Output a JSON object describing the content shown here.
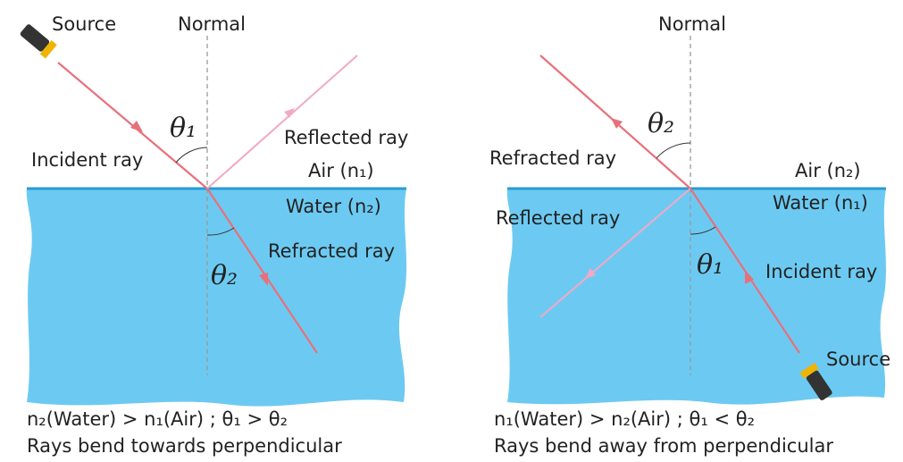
{
  "panels": [
    {
      "source": "Source",
      "normal": "Normal",
      "angle_top": "θ₁",
      "incident": "Incident ray",
      "reflected": "Reflected ray",
      "upper_medium": "Air (n₁)",
      "lower_medium": "Water (n₂)",
      "refracted": "Refracted ray",
      "angle_bottom": "θ₂",
      "caption": [
        "n₂(Water) > n₁(Air) ;  θ₁ > θ₂",
        "Rays bend towards perpendicular"
      ]
    },
    {
      "normal": "Normal",
      "angle_top": "θ₂",
      "refracted": "Refracted ray",
      "upper_medium": "Air (n₂)",
      "lower_medium": "Water (n₁)",
      "reflected": "Reflected ray",
      "angle_bottom": "θ₁",
      "incident": "Incident ray",
      "source": "Source",
      "caption": [
        "n₁(Water) > n₂(Air) ;  θ₁ < θ₂",
        "Rays bend away from perpendicular"
      ]
    }
  ]
}
